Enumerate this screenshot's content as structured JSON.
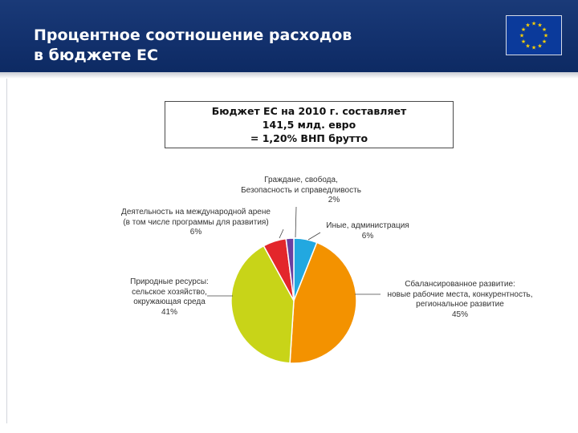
{
  "header": {
    "title": "Процентное соотношение расходов\nв бюджете ЕС",
    "flag_icon": "eu-flag-icon",
    "flag_color": "#0b3a9b",
    "star_color": "#ffd200"
  },
  "budget_box": {
    "line1": "Бюджет ЕС на 2010 г. составляет",
    "line2": "141,5 млд. евро",
    "line3": "= 1,20% ВНП брутто"
  },
  "chart_data": {
    "type": "pie",
    "title": "",
    "slices": [
      {
        "label_lines": [
          "Иные, администрация"
        ],
        "pct_label": "6%",
        "value": 6,
        "color": "#22a8e0"
      },
      {
        "label_lines": [
          "Сбалансированное развитие:",
          "новые рабочие места, конкурентность,",
          "региональное развитие"
        ],
        "pct_label": "45%",
        "value": 45,
        "color": "#f39200"
      },
      {
        "label_lines": [
          "Природные ресурсы:",
          "сельское хозяйство,",
          "окружающая среда"
        ],
        "pct_label": "41%",
        "value": 41,
        "color": "#c8d418"
      },
      {
        "label_lines": [
          "Деятельность на международной арене",
          "(в том числе программы для развития)"
        ],
        "pct_label": "6%",
        "value": 6,
        "color": "#e3262b"
      },
      {
        "label_lines": [
          "Граждане, свобода,",
          "Безопасность и справедливость"
        ],
        "pct_label": "2%",
        "value": 2,
        "color": "#6b3fa0"
      }
    ]
  }
}
